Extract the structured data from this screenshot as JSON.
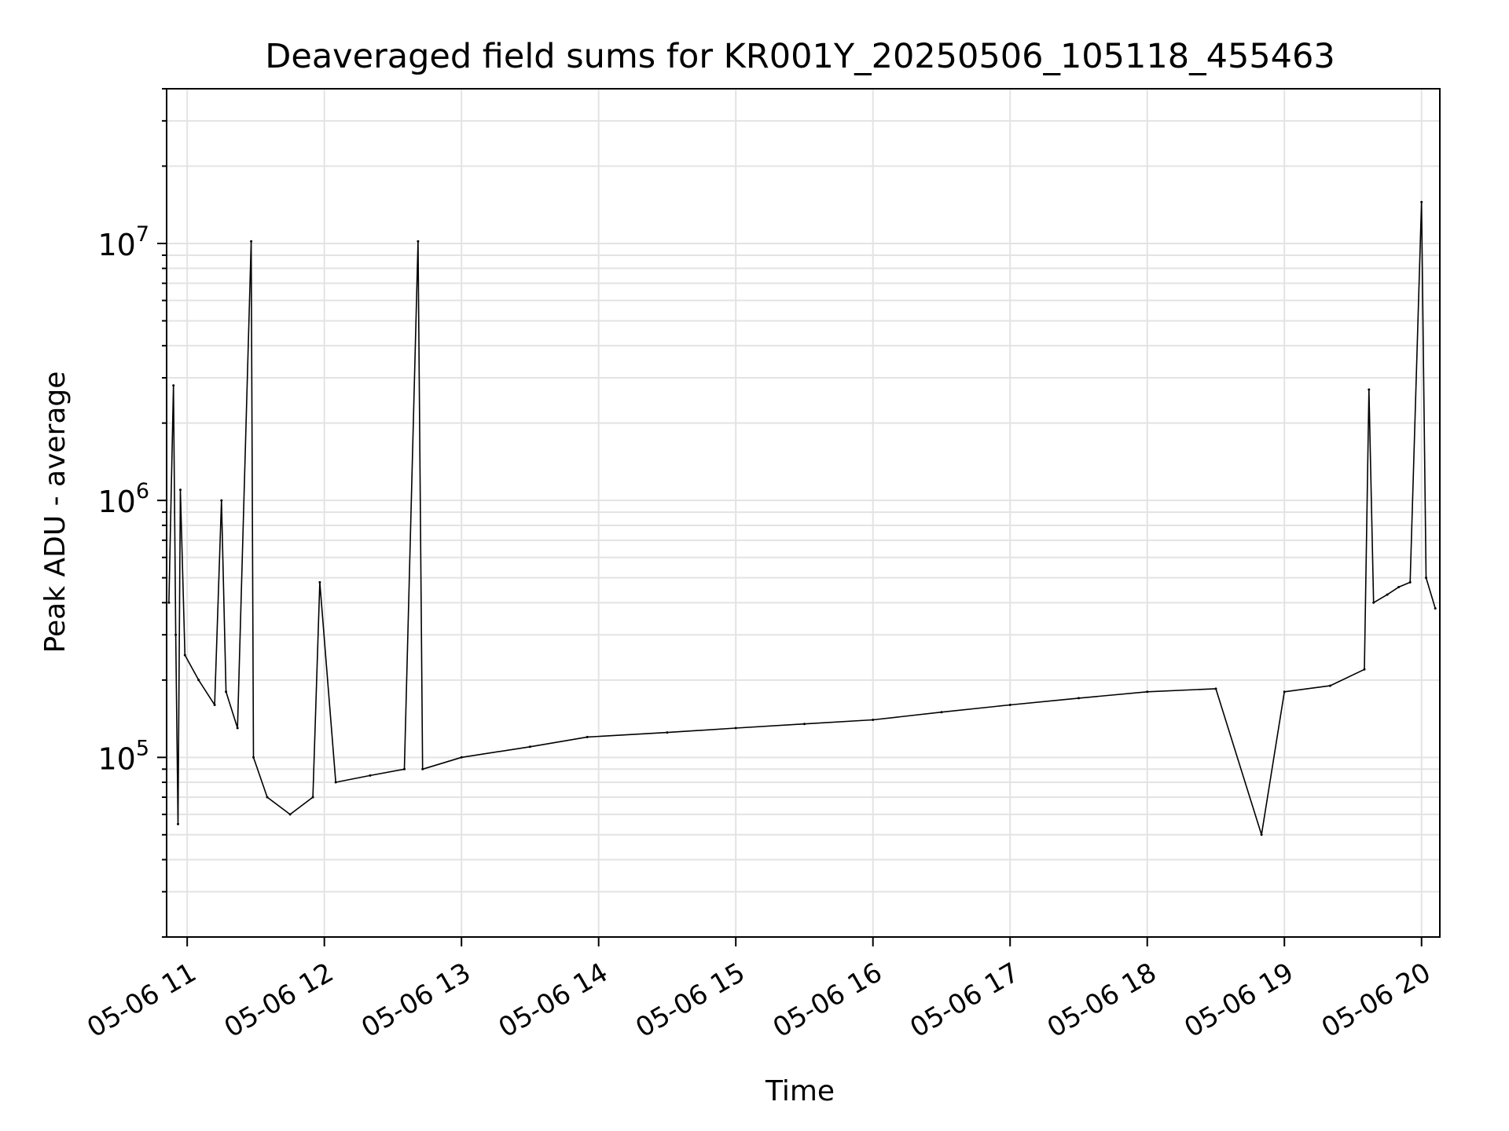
{
  "chart_data": {
    "type": "line",
    "title": "Deaveraged field sums for KR001Y_20250506_105118_455463",
    "xlabel": "Time",
    "ylabel": "Peak ADU - average",
    "yscale": "log",
    "xlim": [
      "05-06 10:51",
      "05-06 20:08"
    ],
    "ylim": [
      20000,
      40000000
    ],
    "grid": true,
    "line_color": "#000000",
    "x_ticks": [
      "05-06 11",
      "05-06 12",
      "05-06 13",
      "05-06 14",
      "05-06 15",
      "05-06 16",
      "05-06 17",
      "05-06 18",
      "05-06 19",
      "05-06 20"
    ],
    "y_ticks": [
      {
        "value": 100000,
        "base": "10",
        "exp": "5"
      },
      {
        "value": 1000000,
        "base": "10",
        "exp": "6"
      },
      {
        "value": 10000000,
        "base": "10",
        "exp": "7"
      }
    ],
    "series": [
      {
        "name": "",
        "points": [
          [
            "05-06 10:52",
            400000
          ],
          [
            "05-06 10:54",
            2800000
          ],
          [
            "05-06 10:55",
            300000
          ],
          [
            "05-06 10:56",
            55000
          ],
          [
            "05-06 10:57",
            1100000
          ],
          [
            "05-06 10:59",
            250000
          ],
          [
            "05-06 11:05",
            200000
          ],
          [
            "05-06 11:12",
            160000
          ],
          [
            "05-06 11:15",
            1000000
          ],
          [
            "05-06 11:17",
            180000
          ],
          [
            "05-06 11:22",
            130000
          ],
          [
            "05-06 11:28",
            10200000
          ],
          [
            "05-06 11:29",
            100000
          ],
          [
            "05-06 11:35",
            70000
          ],
          [
            "05-06 11:45",
            60000
          ],
          [
            "05-06 11:55",
            70000
          ],
          [
            "05-06 11:58",
            480000
          ],
          [
            "05-06 12:05",
            80000
          ],
          [
            "05-06 12:20",
            85000
          ],
          [
            "05-06 12:35",
            90000
          ],
          [
            "05-06 12:41",
            10200000
          ],
          [
            "05-06 12:43",
            90000
          ],
          [
            "05-06 13:00",
            100000
          ],
          [
            "05-06 13:30",
            110000
          ],
          [
            "05-06 13:55",
            120000
          ],
          [
            "05-06 14:30",
            125000
          ],
          [
            "05-06 15:00",
            130000
          ],
          [
            "05-06 15:30",
            135000
          ],
          [
            "05-06 16:00",
            140000
          ],
          [
            "05-06 16:30",
            150000
          ],
          [
            "05-06 17:00",
            160000
          ],
          [
            "05-06 17:30",
            170000
          ],
          [
            "05-06 18:00",
            180000
          ],
          [
            "05-06 18:30",
            185000
          ],
          [
            "05-06 18:50",
            50000
          ],
          [
            "05-06 19:00",
            180000
          ],
          [
            "05-06 19:20",
            190000
          ],
          [
            "05-06 19:35",
            220000
          ],
          [
            "05-06 19:37",
            2700000
          ],
          [
            "05-06 19:39",
            400000
          ],
          [
            "05-06 19:45",
            430000
          ],
          [
            "05-06 19:50",
            460000
          ],
          [
            "05-06 19:55",
            480000
          ],
          [
            "05-06 20:00",
            14500000
          ],
          [
            "05-06 20:02",
            500000
          ],
          [
            "05-06 20:06",
            380000
          ]
        ]
      }
    ]
  }
}
